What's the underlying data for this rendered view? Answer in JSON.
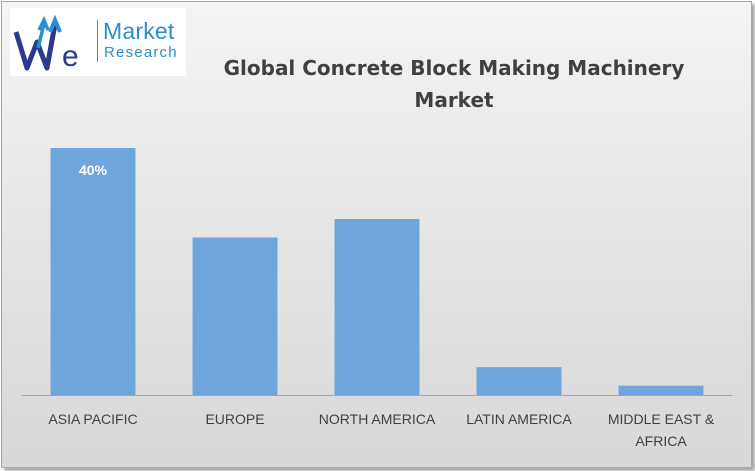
{
  "logo": {
    "word1": "Market",
    "word2": "Research"
  },
  "colors": {
    "bar": "#6ea6dc",
    "axis": "#a6a6a6",
    "tick_text": "#404040",
    "data_label": "#ffffff",
    "logo_blue": "#2a8fd0",
    "logo_navy": "#2b3a8c"
  },
  "chart_data": {
    "type": "bar",
    "title": "Global Concrete Block Making Machinery Market",
    "categories": [
      [
        "ASIA PACIFIC"
      ],
      [
        "EUROPE"
      ],
      [
        "NORTH AMERICA"
      ],
      [
        "LATIN AMERICA"
      ],
      [
        "MIDDLE EAST &",
        "AFRICA"
      ]
    ],
    "values": [
      40,
      25.5,
      28.5,
      4.5,
      1.5
    ],
    "data_labels": [
      "40%",
      "",
      "",
      "",
      ""
    ],
    "ylim": [
      0,
      40
    ],
    "grid": false,
    "legend": "none"
  }
}
